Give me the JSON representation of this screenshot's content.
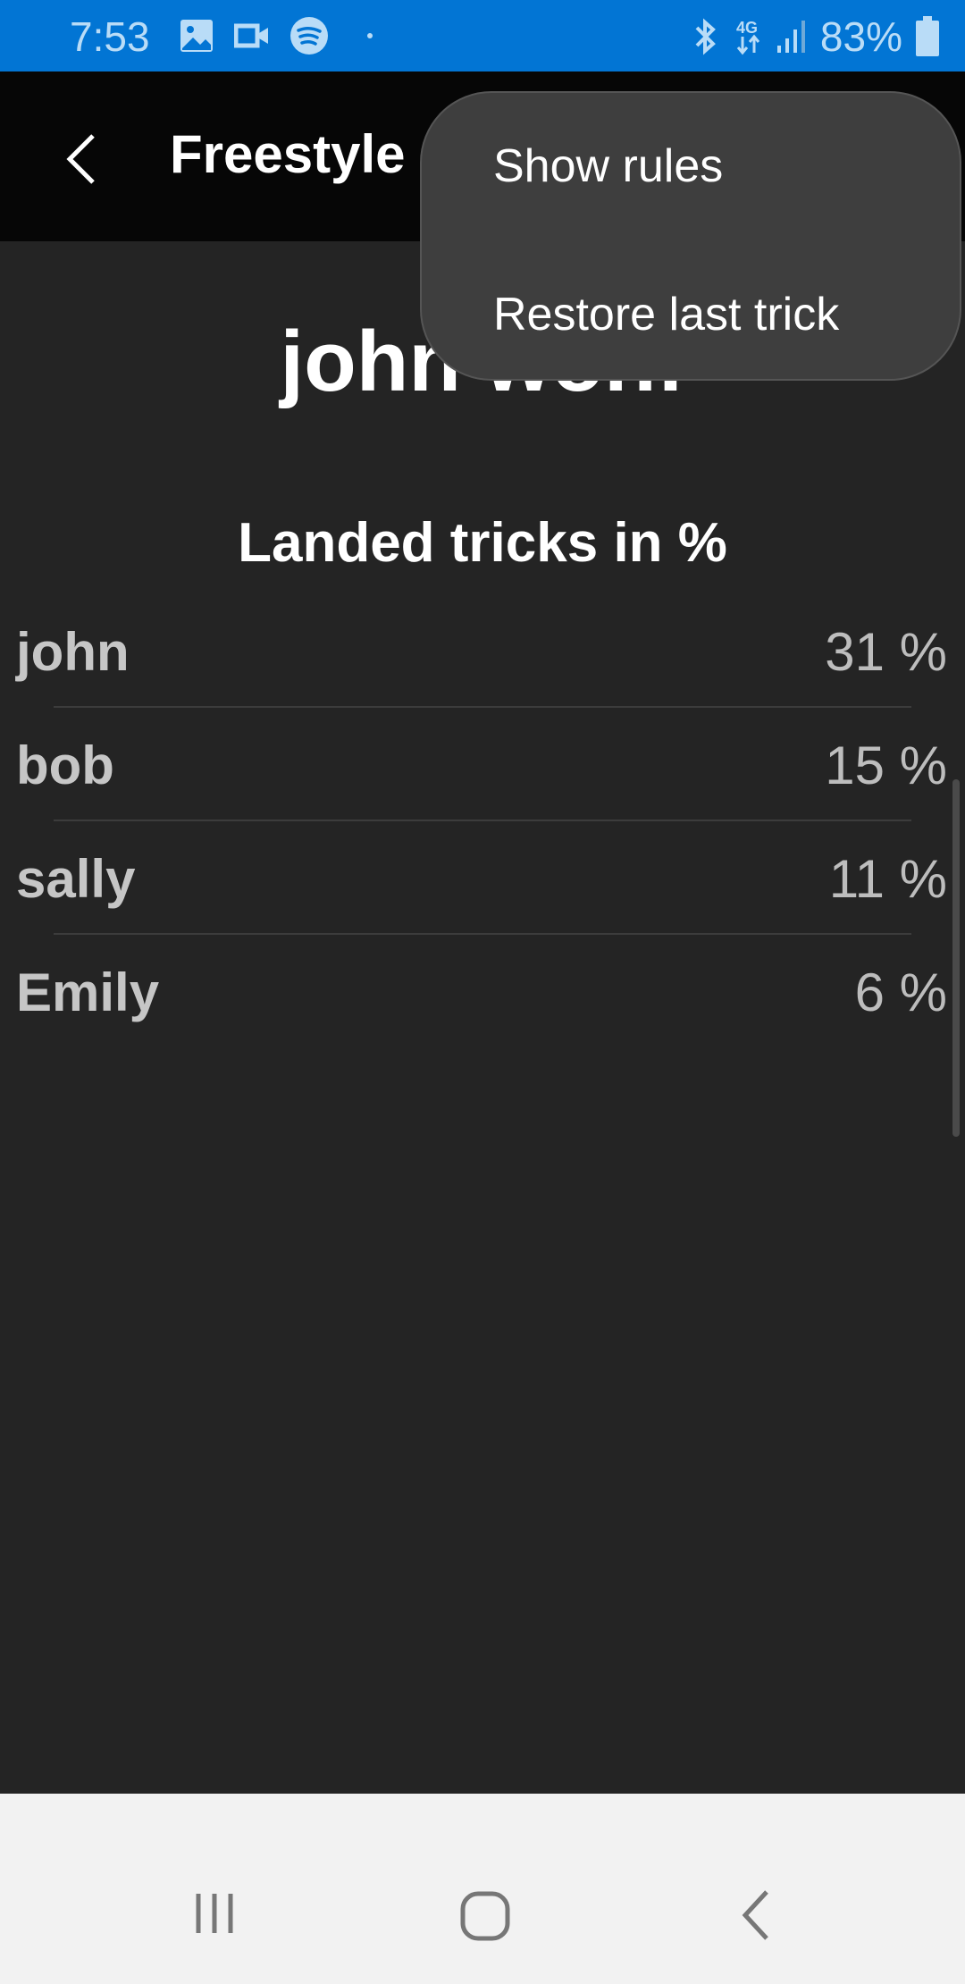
{
  "status_bar": {
    "time": "7:53",
    "battery": "83%",
    "network": "4G",
    "icons_left": [
      "gallery-icon",
      "video-icon",
      "spotify-icon",
      "dot-icon"
    ],
    "icons_right": [
      "bluetooth-icon",
      "4g-icon",
      "signal-icon",
      "battery-icon"
    ],
    "color": "#0275d4"
  },
  "app_bar": {
    "title": "Freestyle Game"
  },
  "main": {
    "winner": "john won!",
    "subtitle": "Landed tricks in %",
    "players": [
      {
        "name": "john",
        "percent": "31 %"
      },
      {
        "name": "bob",
        "percent": "15 %"
      },
      {
        "name": "sally",
        "percent": "11 %"
      },
      {
        "name": "Emily",
        "percent": "6 %"
      }
    ]
  },
  "menu": {
    "items": [
      "Show rules",
      "Restore last trick"
    ]
  },
  "nav_bar": {
    "icons": [
      "recents-icon",
      "home-icon",
      "back-icon"
    ]
  }
}
